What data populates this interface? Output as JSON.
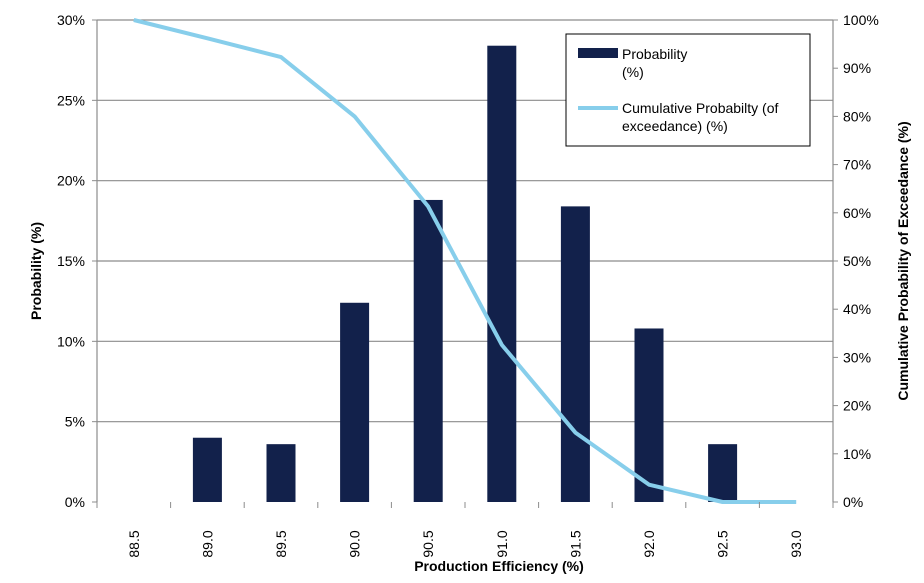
{
  "chart_data": {
    "type": "bar+line",
    "title": "",
    "xlabel": "Production Efficiency (%)",
    "ylabel": "Probability (%)",
    "y2label": "Cumulative Probability of Exceedance (%)",
    "categories": [
      "88.5",
      "89.0",
      "89.5",
      "90.0",
      "90.5",
      "91.0",
      "91.5",
      "92.0",
      "92.5",
      "93.0"
    ],
    "ylim": [
      0,
      30
    ],
    "y_ticks": [
      "0%",
      "5%",
      "10%",
      "15%",
      "20%",
      "25%",
      "30%"
    ],
    "y2lim": [
      0,
      100
    ],
    "y2_ticks": [
      "0%",
      "10%",
      "20%",
      "30%",
      "40%",
      "50%",
      "60%",
      "70%",
      "80%",
      "90%",
      "100%"
    ],
    "grid": true,
    "legend_position": "top-right",
    "series": [
      {
        "name": "Probability (%)",
        "legend_lines": [
          "Probability",
          "(%)"
        ],
        "type": "bar",
        "axis": "left",
        "color": "#12214b",
        "values": [
          0,
          4.0,
          3.6,
          12.4,
          18.8,
          28.4,
          18.4,
          10.8,
          3.6,
          0
        ]
      },
      {
        "name": "Cumulative Probabilty (of exceedance) (%)",
        "legend_lines": [
          "Cumulative Probabilty (of",
          "exceedance) (%)"
        ],
        "type": "line",
        "axis": "right",
        "color": "#87ceeb",
        "values": [
          100,
          96.2,
          92.3,
          80,
          61.3,
          32.6,
          14.4,
          3.6,
          0,
          0
        ]
      }
    ]
  }
}
